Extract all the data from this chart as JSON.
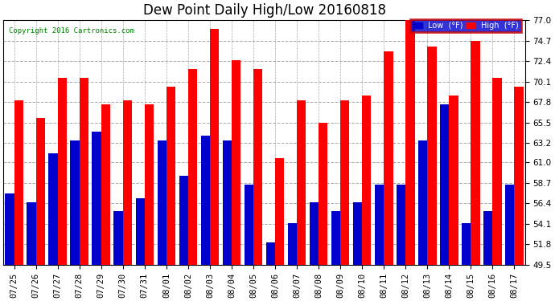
{
  "title": "Dew Point Daily High/Low 20160818",
  "copyright": "Copyright 2016 Cartronics.com",
  "categories": [
    "07/25",
    "07/26",
    "07/27",
    "07/28",
    "07/29",
    "07/30",
    "07/31",
    "08/01",
    "08/02",
    "08/03",
    "08/04",
    "08/05",
    "08/06",
    "08/07",
    "08/08",
    "08/09",
    "08/10",
    "08/11",
    "08/12",
    "08/13",
    "08/14",
    "08/15",
    "08/16",
    "08/17"
  ],
  "high": [
    68.0,
    66.0,
    70.5,
    70.5,
    67.5,
    68.0,
    67.5,
    69.5,
    71.5,
    76.0,
    72.5,
    71.5,
    61.5,
    68.0,
    65.5,
    68.0,
    68.5,
    73.5,
    77.5,
    74.0,
    68.5,
    74.7,
    70.5,
    69.5
  ],
  "low": [
    57.5,
    56.5,
    62.0,
    63.5,
    64.5,
    55.5,
    57.0,
    63.5,
    59.5,
    64.0,
    63.5,
    58.5,
    52.0,
    54.2,
    56.5,
    55.5,
    56.5,
    58.5,
    58.5,
    63.5,
    67.5,
    54.2,
    55.5,
    58.5
  ],
  "high_color": "#ff0000",
  "low_color": "#0000cc",
  "ylim": [
    49.5,
    77.0
  ],
  "ymin": 49.5,
  "yticks": [
    49.5,
    51.8,
    54.1,
    56.4,
    58.7,
    61.0,
    63.2,
    65.5,
    67.8,
    70.1,
    72.4,
    74.7,
    77.0
  ],
  "background_color": "#ffffff",
  "grid_color": "#aaaaaa",
  "title_fontsize": 12,
  "tick_fontsize": 7.5,
  "legend_low_color": "#0000cc",
  "legend_high_color": "#ff0000",
  "fig_width": 6.9,
  "fig_height": 3.75
}
